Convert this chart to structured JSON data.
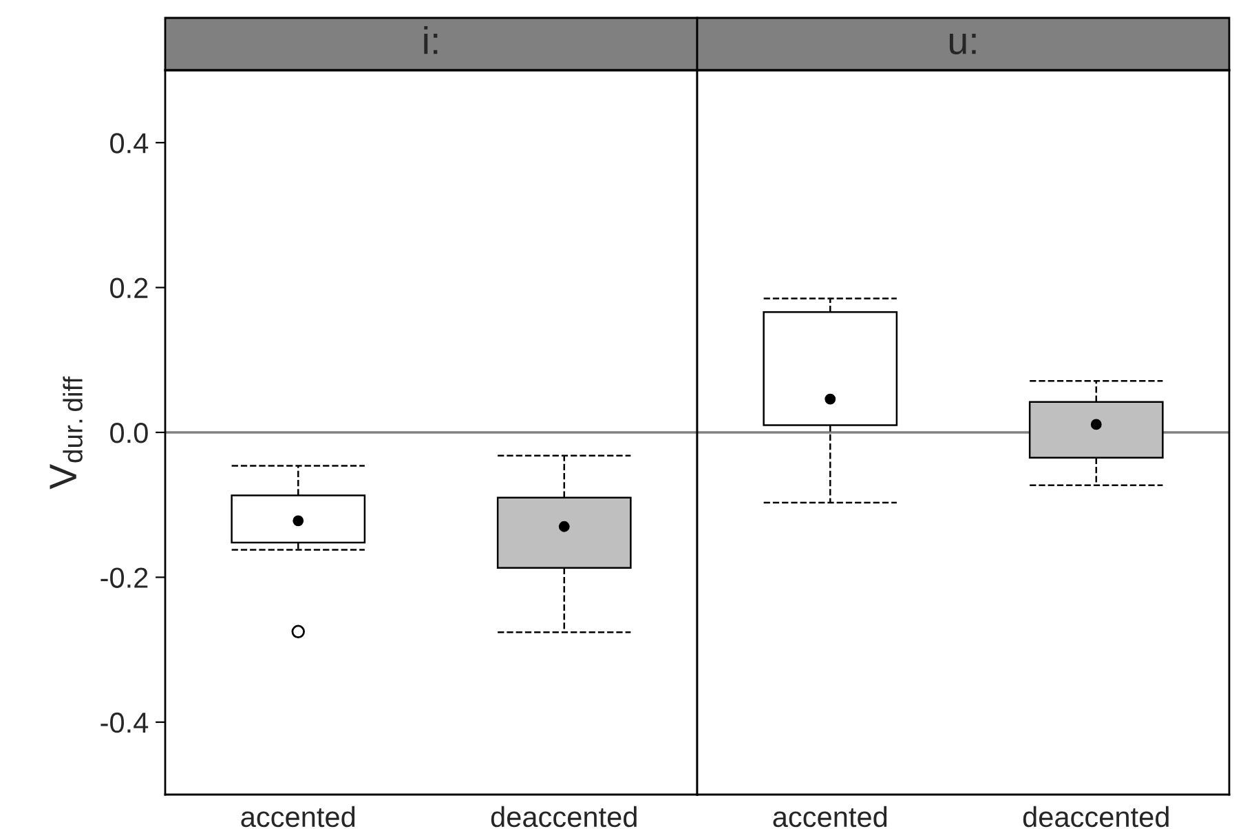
{
  "chart_data": [
    {
      "type": "box",
      "title": "i:",
      "ylabel": "V$_{dur.diff}$",
      "categories": [
        "accented",
        "deaccented"
      ],
      "colors": [
        "#ffffff",
        "#bfbfbf"
      ],
      "boxes": [
        {
          "low": -0.162,
          "q1": -0.152,
          "median": -0.122,
          "q3": -0.087,
          "high": -0.046,
          "outliers": [
            -0.275
          ]
        },
        {
          "low": -0.276,
          "q1": -0.187,
          "median": -0.13,
          "q3": -0.09,
          "high": -0.032
        }
      ],
      "ylim": [
        -0.5,
        0.5
      ],
      "yticks": [
        -0.4,
        -0.2,
        {
          "value": 0,
          "label": "0.0"
        },
        0.2,
        0.4
      ],
      "line_style": "dashed",
      "grid": false,
      "legend": false,
      "ref_lines": [
        {
          "axis": "y",
          "value": 0,
          "color": "#808080"
        }
      ]
    },
    {
      "type": "box",
      "title": "u:",
      "categories": [
        "accented",
        "deaccented"
      ],
      "colors": [
        "#ffffff",
        "#bfbfbf"
      ],
      "boxes": [
        {
          "low": -0.097,
          "q1": 0.01,
          "median": 0.046,
          "q3": 0.166,
          "high": 0.185
        },
        {
          "low": -0.073,
          "q1": -0.035,
          "median": 0.011,
          "q3": 0.042,
          "high": 0.071
        }
      ],
      "ylim": [
        -0.5,
        0.5
      ],
      "tick_labels": "x",
      "line_style": "dashed",
      "grid": false,
      "legend": false,
      "ref_lines": [
        {
          "axis": "y",
          "value": 0,
          "color": "#808080"
        }
      ]
    }
  ]
}
